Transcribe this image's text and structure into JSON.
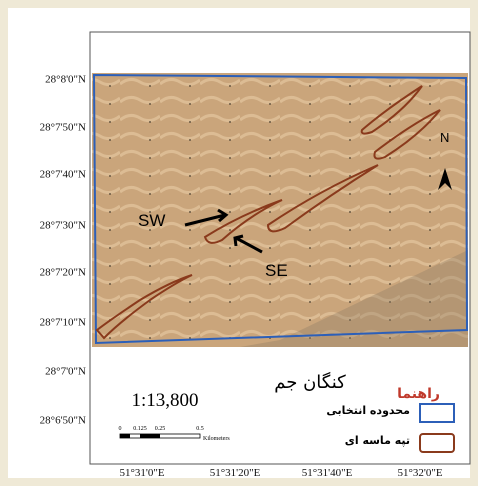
{
  "map": {
    "lat_labels": [
      "28°8'0\"N",
      "28°7'50\"N",
      "28°7'40\"N",
      "28°7'30\"N",
      "28°7'20\"N",
      "28°7'10\"N",
      "28°7'0\"N",
      "28°6'50\"N"
    ],
    "lon_labels": [
      "51°31'0\"E",
      "51°31'20\"E",
      "51°31'40\"E",
      "51°32'0\"E"
    ],
    "annotations": {
      "sw": "SW",
      "se": "SE",
      "north": "N"
    },
    "title": "کنگان جم",
    "scale": "1:13,800",
    "scale_bar": {
      "ticks": [
        "0",
        "0.125",
        "0.25",
        "0.5"
      ],
      "unit": "Kilometers"
    },
    "legend": {
      "title": "راهنما",
      "items": [
        "محدوده انتخابی",
        "تپه ماسه ای"
      ]
    }
  }
}
